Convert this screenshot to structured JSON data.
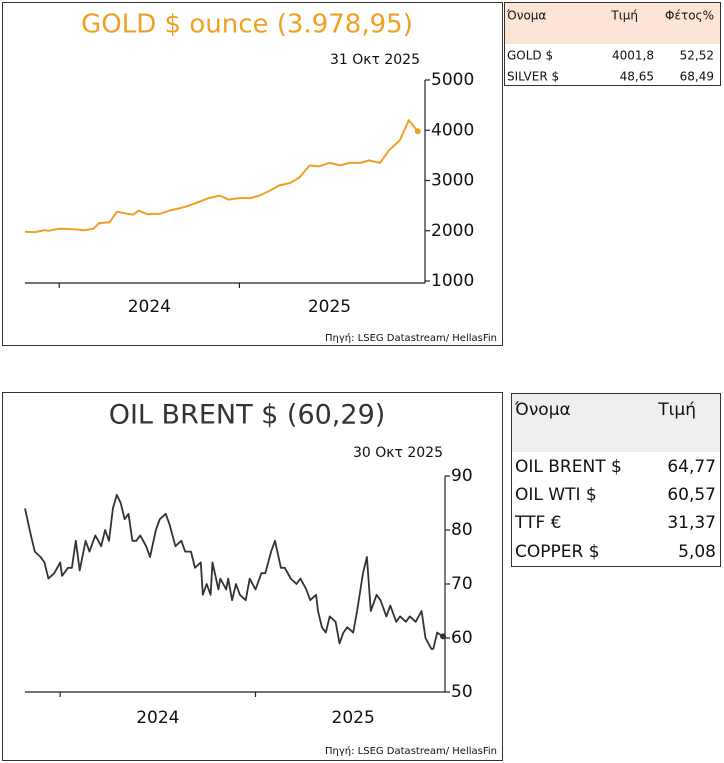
{
  "chart_data": [
    {
      "type": "line",
      "title": "GOLD $ ounce (3.978,95)",
      "date": "31 Οκτ 2025",
      "source": "Πηγή: LSEG Datastream/ HellasFin",
      "color": "#f0a023",
      "end_marker": true,
      "series": [
        {
          "name": "GOLD $",
          "x": [
            2023.81,
            2023.86,
            2023.92,
            2023.94,
            2024.0,
            2024.08,
            2024.14,
            2024.19,
            2024.22,
            2024.28,
            2024.32,
            2024.36,
            2024.41,
            2024.44,
            2024.49,
            2024.56,
            2024.61,
            2024.67,
            2024.72,
            2024.78,
            2024.83,
            2024.89,
            2024.94,
            2025.0,
            2025.06,
            2025.11,
            2025.17,
            2025.22,
            2025.28,
            2025.33,
            2025.39,
            2025.44,
            2025.5,
            2025.56,
            2025.61,
            2025.67,
            2025.72,
            2025.78,
            2025.83,
            2025.89,
            2025.94,
            2025.99
          ],
          "values": [
            1980,
            1970,
            2010,
            2000,
            2040,
            2030,
            2010,
            2040,
            2150,
            2170,
            2380,
            2350,
            2320,
            2400,
            2330,
            2340,
            2400,
            2450,
            2500,
            2580,
            2650,
            2700,
            2620,
            2650,
            2650,
            2700,
            2800,
            2900,
            2950,
            3050,
            3300,
            3280,
            3350,
            3300,
            3350,
            3350,
            3400,
            3350,
            3600,
            3800,
            4200,
            3979
          ]
        }
      ],
      "xlim": [
        2023.81,
        2026.03
      ],
      "xticks": [
        2024,
        2025
      ],
      "ylim": [
        1000,
        5000
      ],
      "yticks": [
        1000,
        2000,
        3000,
        4000,
        5000
      ]
    },
    {
      "type": "line",
      "title": "OIL BRENT $ (60,29)",
      "date": "30 Οκτ 2025",
      "source": "Πηγή: LSEG Datastream/ HellasFin",
      "color": "#333333",
      "end_marker": true,
      "series": [
        {
          "name": "OIL BRENT $",
          "x": [
            2023.82,
            2023.85,
            2023.87,
            2023.9,
            2023.92,
            2023.94,
            2023.97,
            2024.0,
            2024.01,
            2024.04,
            2024.06,
            2024.08,
            2024.1,
            2024.13,
            2024.15,
            2024.18,
            2024.21,
            2024.23,
            2024.25,
            2024.27,
            2024.29,
            2024.31,
            2024.33,
            2024.35,
            2024.37,
            2024.39,
            2024.41,
            2024.44,
            2024.46,
            2024.49,
            2024.51,
            2024.54,
            2024.56,
            2024.59,
            2024.62,
            2024.64,
            2024.67,
            2024.69,
            2024.72,
            2024.73,
            2024.75,
            2024.77,
            2024.78,
            2024.81,
            2024.82,
            2024.85,
            2024.86,
            2024.88,
            2024.9,
            2024.92,
            2024.95,
            2024.97,
            2025.0,
            2025.03,
            2025.05,
            2025.08,
            2025.1,
            2025.13,
            2025.15,
            2025.18,
            2025.21,
            2025.23,
            2025.26,
            2025.28,
            2025.31,
            2025.32,
            2025.34,
            2025.36,
            2025.38,
            2025.41,
            2025.43,
            2025.45,
            2025.47,
            2025.5,
            2025.52,
            2025.55,
            2025.57,
            2025.59,
            2025.62,
            2025.64,
            2025.67,
            2025.69,
            2025.72,
            2025.74,
            2025.77,
            2025.79,
            2025.82,
            2025.85,
            2025.87,
            2025.9,
            2025.91,
            2025.93,
            2025.96
          ],
          "values": [
            84,
            79,
            76,
            75,
            74,
            71,
            72,
            74,
            71.5,
            73,
            73,
            78,
            72.5,
            78,
            76,
            79,
            77,
            80,
            78,
            84,
            86.5,
            85,
            82,
            83,
            78,
            78,
            79,
            77,
            75,
            80,
            82,
            83,
            81,
            77,
            78,
            76,
            76,
            73,
            74,
            68,
            70,
            68,
            74,
            69,
            71,
            69,
            71,
            67,
            70,
            68,
            67,
            71,
            69,
            72,
            72,
            76,
            78,
            73,
            73,
            71,
            70,
            71,
            69,
            67,
            68,
            65,
            62,
            61,
            64,
            63,
            59,
            61,
            62,
            61,
            65,
            72,
            75,
            65,
            68,
            67,
            64,
            66,
            63,
            64,
            63,
            64,
            63,
            65,
            60,
            58,
            58,
            61,
            60.3
          ]
        }
      ],
      "xlim": [
        2023.82,
        2025.97
      ],
      "xticks": [
        2024,
        2025
      ],
      "ylim": [
        50,
        90
      ],
      "yticks": [
        50,
        60,
        70,
        80,
        90
      ]
    }
  ],
  "tables": [
    {
      "columns": [
        "Όνομα",
        "Τιμή",
        "Φέτος%"
      ],
      "rows": [
        [
          "GOLD $",
          "4001,8",
          "52,52"
        ],
        [
          "SILVER $",
          "48,65",
          "68,49"
        ]
      ]
    },
    {
      "columns": [
        "Όνομα",
        "Τιμή"
      ],
      "rows": [
        [
          "OIL BRENT $",
          "64,77"
        ],
        [
          "OIL WTI $",
          "60,57"
        ],
        [
          "TTF €",
          "31,37"
        ],
        [
          "COPPER $",
          "5,08"
        ]
      ]
    }
  ]
}
